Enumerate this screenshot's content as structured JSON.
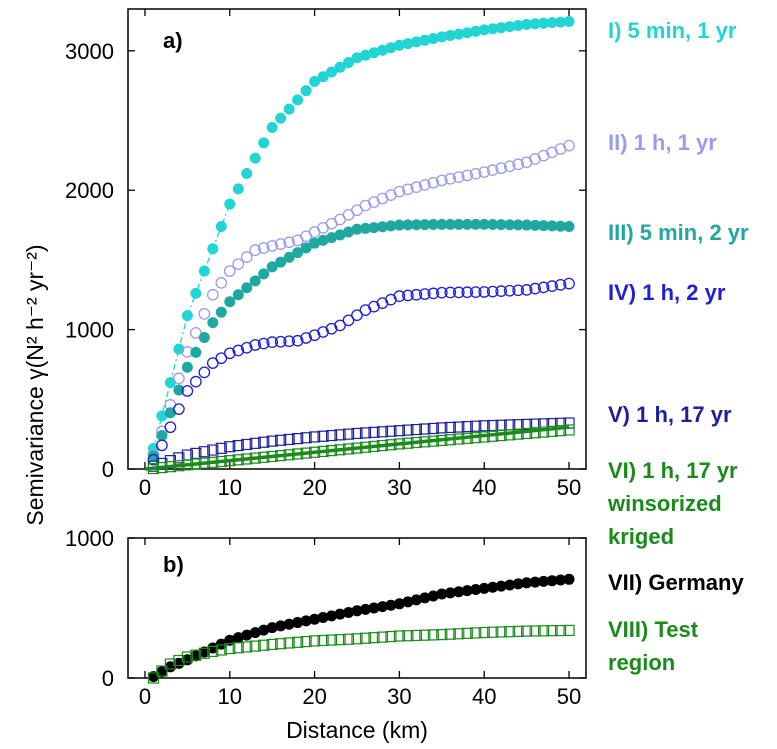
{
  "chart_data": [
    {
      "type": "scatter",
      "panel_label": "a)",
      "xlabel": "Distance (km)",
      "ylabel": "Semivariance γ(N² h⁻² yr⁻²)",
      "xlim": [
        -2,
        52
      ],
      "ylim": [
        0,
        3300
      ],
      "xticks": [
        0,
        10,
        20,
        30,
        40,
        50
      ],
      "yticks": [
        0,
        1000,
        2000,
        3000
      ],
      "grid": false,
      "legend_placement": "right-outside",
      "series": [
        {
          "name": "I) 5 min, 1 yr",
          "color": "#22d4d4",
          "marker": "filled-circle",
          "curve": "cyan_5min_1yr"
        },
        {
          "name": "II) 1 h, 1 yr",
          "color": "#9b9bf0",
          "marker": "open-circle",
          "curve": "lav_1h_1yr"
        },
        {
          "name": "III) 5 min, 2 yr",
          "color": "#20a8a0",
          "marker": "filled-circle",
          "curve": "teal_5min_2yr"
        },
        {
          "name": "IV) 1 h, 2 yr",
          "color": "#1f1fd6",
          "marker": "open-circle",
          "curve": "blue_1h_2yr"
        },
        {
          "name": "V) 1 h, 17 yr",
          "color": "#1f1f9e",
          "marker": "open-square",
          "curve": "navy_1h_17yr"
        },
        {
          "name": "VI) 1 h, 17 yr winsorized kriged",
          "legend_lines": [
            "VI) 1 h, 17 yr",
            "winsorized",
            "kriged"
          ],
          "color": "#1a8a1a",
          "marker": "open-square-with-line",
          "curve": "green_1h_17yr"
        }
      ]
    },
    {
      "type": "scatter",
      "panel_label": "b)",
      "xlabel": "Distance (km)",
      "xlim": [
        -2,
        52
      ],
      "ylim": [
        0,
        1000
      ],
      "xticks": [
        0,
        10,
        20,
        30,
        40,
        50
      ],
      "yticks": [
        0,
        1000
      ],
      "grid": false,
      "legend_placement": "right-outside",
      "series": [
        {
          "name": "VII) Germany",
          "color": "#000000",
          "marker": "filled-circle",
          "curve": "germany"
        },
        {
          "name": "VIII) Test region",
          "legend_lines": [
            "VIII) Test",
            "region"
          ],
          "color": "#1a8a1a",
          "marker": "open-square",
          "curve": "test_region"
        }
      ]
    }
  ],
  "curves": {
    "cyan_5min_1yr": [
      [
        0.5,
        30
      ],
      [
        2,
        380
      ],
      [
        5,
        1100
      ],
      [
        10,
        1900
      ],
      [
        15,
        2450
      ],
      [
        20,
        2780
      ],
      [
        25,
        2950
      ],
      [
        30,
        3040
      ],
      [
        35,
        3100
      ],
      [
        40,
        3150
      ],
      [
        45,
        3190
      ],
      [
        50,
        3210
      ]
    ],
    "lav_1h_1yr": [
      [
        0.5,
        20
      ],
      [
        2,
        270
      ],
      [
        5,
        840
      ],
      [
        8,
        1250
      ],
      [
        10,
        1420
      ],
      [
        13,
        1570
      ],
      [
        15,
        1600
      ],
      [
        18,
        1640
      ],
      [
        20,
        1700
      ],
      [
        23,
        1790
      ],
      [
        26,
        1890
      ],
      [
        30,
        1990
      ],
      [
        35,
        2070
      ],
      [
        40,
        2130
      ],
      [
        45,
        2200
      ],
      [
        50,
        2320
      ]
    ],
    "teal_5min_2yr": [
      [
        0.5,
        20
      ],
      [
        2,
        240
      ],
      [
        5,
        730
      ],
      [
        8,
        1050
      ],
      [
        10,
        1200
      ],
      [
        15,
        1450
      ],
      [
        20,
        1620
      ],
      [
        25,
        1720
      ],
      [
        30,
        1750
      ],
      [
        35,
        1755
      ],
      [
        40,
        1755
      ],
      [
        45,
        1750
      ],
      [
        50,
        1740
      ]
    ],
    "blue_1h_2yr": [
      [
        0.5,
        15
      ],
      [
        2,
        170
      ],
      [
        5,
        560
      ],
      [
        8,
        760
      ],
      [
        10,
        830
      ],
      [
        13,
        890
      ],
      [
        15,
        910
      ],
      [
        18,
        920
      ],
      [
        20,
        960
      ],
      [
        23,
        1030
      ],
      [
        26,
        1140
      ],
      [
        30,
        1240
      ],
      [
        35,
        1265
      ],
      [
        40,
        1270
      ],
      [
        45,
        1285
      ],
      [
        50,
        1330
      ]
    ],
    "navy_1h_17yr": [
      [
        0.5,
        10
      ],
      [
        2,
        40
      ],
      [
        5,
        100
      ],
      [
        10,
        160
      ],
      [
        15,
        200
      ],
      [
        20,
        230
      ],
      [
        25,
        255
      ],
      [
        30,
        275
      ],
      [
        35,
        295
      ],
      [
        40,
        310
      ],
      [
        45,
        320
      ],
      [
        50,
        330
      ]
    ],
    "green_1h_17yr": [
      [
        0.5,
        0
      ],
      [
        5,
        30
      ],
      [
        10,
        60
      ],
      [
        15,
        90
      ],
      [
        20,
        120
      ],
      [
        25,
        150
      ],
      [
        30,
        180
      ],
      [
        35,
        205
      ],
      [
        40,
        230
      ],
      [
        45,
        255
      ],
      [
        50,
        280
      ]
    ],
    "green_fit_line": [
      [
        0,
        0
      ],
      [
        50,
        300
      ]
    ],
    "germany": [
      [
        1,
        10
      ],
      [
        3,
        80
      ],
      [
        5,
        130
      ],
      [
        10,
        270
      ],
      [
        15,
        360
      ],
      [
        20,
        420
      ],
      [
        25,
        480
      ],
      [
        30,
        530
      ],
      [
        35,
        600
      ],
      [
        40,
        640
      ],
      [
        45,
        680
      ],
      [
        50,
        705
      ]
    ],
    "test_region": [
      [
        1,
        0
      ],
      [
        3,
        100
      ],
      [
        5,
        150
      ],
      [
        8,
        190
      ],
      [
        10,
        210
      ],
      [
        15,
        240
      ],
      [
        20,
        265
      ],
      [
        25,
        280
      ],
      [
        30,
        300
      ],
      [
        35,
        310
      ],
      [
        40,
        325
      ],
      [
        45,
        335
      ],
      [
        50,
        340
      ]
    ]
  }
}
